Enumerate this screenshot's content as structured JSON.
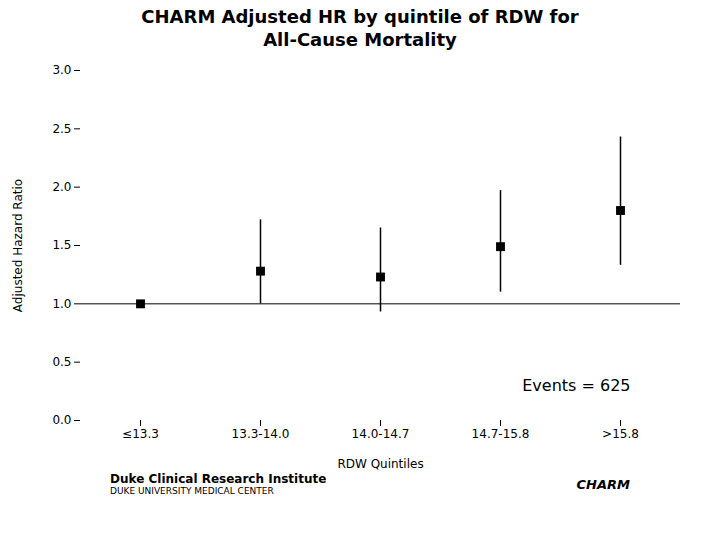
{
  "chart_data": {
    "type": "scatter",
    "title": "CHARM Adjusted HR by quintile of RDW for",
    "subtitle": "All-Cause Mortality",
    "xlabel": "RDW Quintiles",
    "ylabel": "Adjusted Hazard Ratio",
    "categories": [
      "≤13.3",
      "13.3-14.0",
      "14.0-14.7",
      "14.7-15.8",
      ">15.8"
    ],
    "values": [
      1.0,
      1.28,
      1.23,
      1.49,
      1.8
    ],
    "ci_low": [
      1.0,
      1.0,
      0.93,
      1.1,
      1.33
    ],
    "ci_high": [
      1.0,
      1.72,
      1.65,
      1.97,
      2.43
    ],
    "reference_line": 1.0,
    "ylim": [
      0,
      3
    ],
    "yticks": [
      {
        "value": 0,
        "label": "0.0"
      },
      {
        "value": 0.5,
        "label": "0.5"
      },
      {
        "value": 1,
        "label": "1.0"
      },
      {
        "value": 1.5,
        "label": "1.5"
      },
      {
        "value": 2,
        "label": "2.0"
      },
      {
        "value": 2.5,
        "label": "2.5"
      },
      {
        "value": 3,
        "label": "3.0"
      }
    ],
    "marker": "square",
    "grid": false,
    "annotation": "Events = 625",
    "footer": [
      "Duke Clinical Research Institute",
      "DUKE UNIVERSITY MEDICAL CENTER",
      "CHARM"
    ]
  }
}
